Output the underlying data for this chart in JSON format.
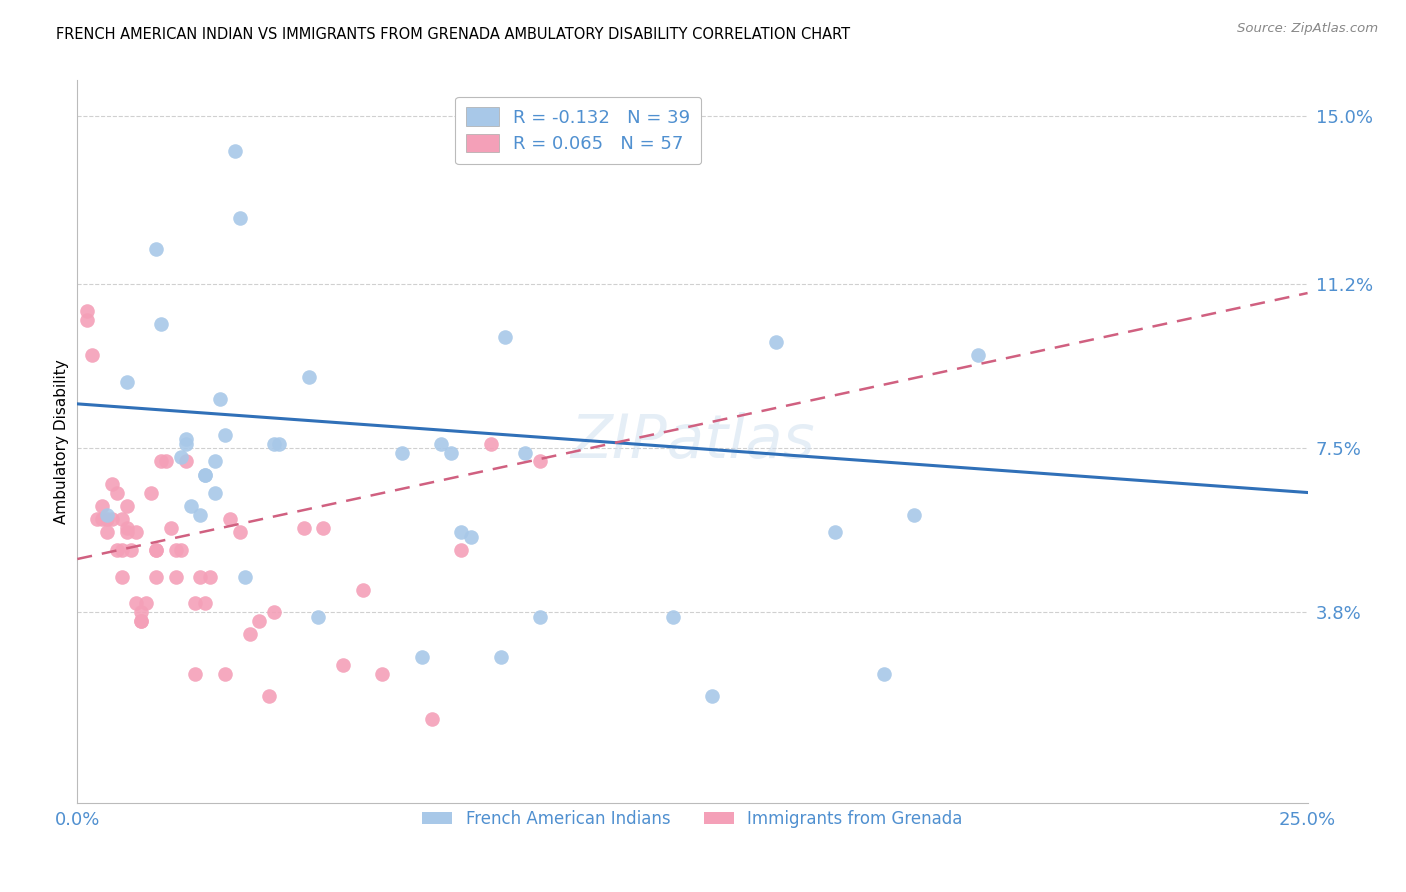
{
  "title": "FRENCH AMERICAN INDIAN VS IMMIGRANTS FROM GRENADA AMBULATORY DISABILITY CORRELATION CHART",
  "source": "Source: ZipAtlas.com",
  "ylabel": "Ambulatory Disability",
  "xlim": [
    0.0,
    0.25
  ],
  "ylim": [
    -0.005,
    0.158
  ],
  "ytick_labels": [
    "15.0%",
    "11.2%",
    "7.5%",
    "3.8%"
  ],
  "ytick_values": [
    0.15,
    0.112,
    0.075,
    0.038
  ],
  "blue_R": -0.132,
  "blue_N": 39,
  "pink_R": 0.065,
  "pink_N": 57,
  "legend_label_blue": "French American Indians",
  "legend_label_pink": "Immigrants from Grenada",
  "blue_color": "#a8c8e8",
  "pink_color": "#f4a0b8",
  "blue_line_color": "#3070b8",
  "pink_line_color": "#d06080",
  "axis_label_color": "#5090d0",
  "tick_color": "#5090d0",
  "grid_color": "#d0d0d0",
  "blue_line_start_y": 0.085,
  "blue_line_end_y": 0.065,
  "pink_line_start_y": 0.05,
  "pink_line_end_y": 0.11,
  "blue_x": [
    0.006,
    0.01,
    0.016,
    0.017,
    0.021,
    0.022,
    0.022,
    0.023,
    0.025,
    0.026,
    0.026,
    0.028,
    0.028,
    0.029,
    0.03,
    0.032,
    0.033,
    0.034,
    0.04,
    0.041,
    0.047,
    0.049,
    0.066,
    0.07,
    0.074,
    0.076,
    0.078,
    0.08,
    0.086,
    0.087,
    0.091,
    0.094,
    0.121,
    0.129,
    0.142,
    0.154,
    0.164,
    0.17,
    0.183
  ],
  "blue_y": [
    0.06,
    0.09,
    0.12,
    0.103,
    0.073,
    0.076,
    0.077,
    0.062,
    0.06,
    0.069,
    0.069,
    0.072,
    0.065,
    0.086,
    0.078,
    0.142,
    0.127,
    0.046,
    0.076,
    0.076,
    0.091,
    0.037,
    0.074,
    0.028,
    0.076,
    0.074,
    0.056,
    0.055,
    0.028,
    0.1,
    0.074,
    0.037,
    0.037,
    0.019,
    0.099,
    0.056,
    0.024,
    0.06,
    0.096
  ],
  "pink_x": [
    0.002,
    0.002,
    0.003,
    0.004,
    0.005,
    0.005,
    0.006,
    0.006,
    0.007,
    0.007,
    0.008,
    0.008,
    0.009,
    0.009,
    0.009,
    0.01,
    0.01,
    0.01,
    0.011,
    0.012,
    0.012,
    0.013,
    0.013,
    0.013,
    0.014,
    0.015,
    0.016,
    0.016,
    0.016,
    0.017,
    0.018,
    0.019,
    0.02,
    0.02,
    0.021,
    0.022,
    0.024,
    0.024,
    0.025,
    0.026,
    0.027,
    0.03,
    0.031,
    0.033,
    0.035,
    0.037,
    0.039,
    0.04,
    0.046,
    0.05,
    0.054,
    0.058,
    0.062,
    0.072,
    0.078,
    0.084,
    0.094
  ],
  "pink_y": [
    0.104,
    0.106,
    0.096,
    0.059,
    0.062,
    0.059,
    0.059,
    0.056,
    0.059,
    0.067,
    0.065,
    0.052,
    0.059,
    0.046,
    0.052,
    0.062,
    0.056,
    0.057,
    0.052,
    0.04,
    0.056,
    0.038,
    0.036,
    0.036,
    0.04,
    0.065,
    0.046,
    0.052,
    0.052,
    0.072,
    0.072,
    0.057,
    0.046,
    0.052,
    0.052,
    0.072,
    0.024,
    0.04,
    0.046,
    0.04,
    0.046,
    0.024,
    0.059,
    0.056,
    0.033,
    0.036,
    0.019,
    0.038,
    0.057,
    0.057,
    0.026,
    0.043,
    0.024,
    0.014,
    0.052,
    0.076,
    0.072
  ]
}
